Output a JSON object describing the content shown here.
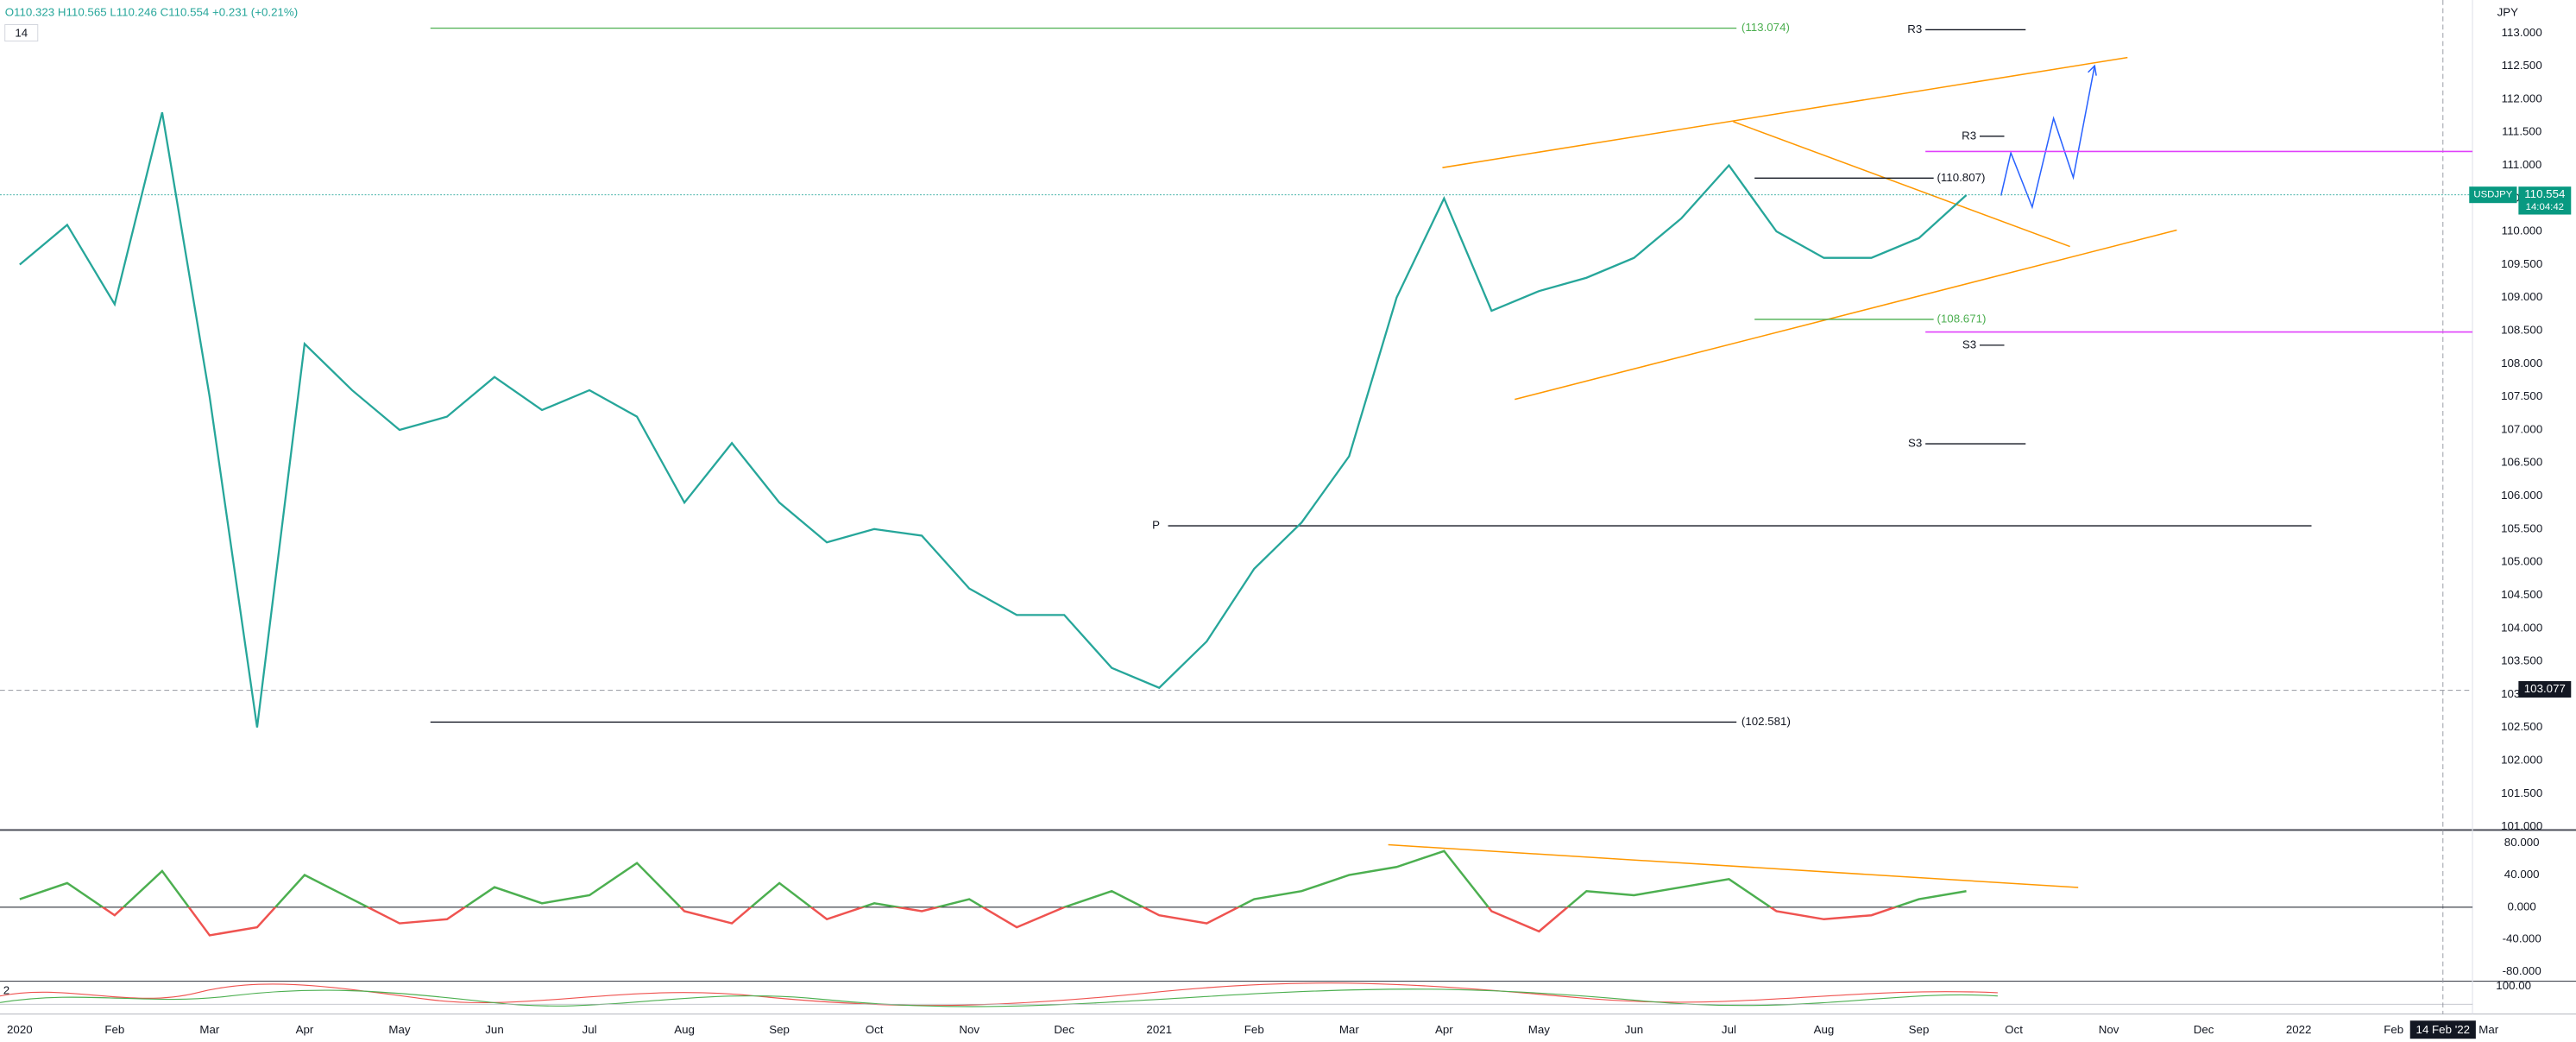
{
  "header": {
    "ohlc": "O110.323 H110.565 L110.246 C110.554 +0.231 (+0.21%)",
    "interval": "14",
    "currency": "JPY"
  },
  "chart_data": [
    {
      "type": "line",
      "symbol": "USDJPY",
      "last_price": 110.554,
      "countdown": "14:04:42",
      "crosshair_price": 103.077,
      "crosshair_date": "14 Feb '22",
      "color": "#26a69a",
      "categories": [
        "2020",
        null,
        "Feb",
        null,
        "Mar",
        null,
        "Apr",
        null,
        "May",
        null,
        "Jun",
        null,
        "Jul",
        null,
        "Aug",
        null,
        "Sep",
        null,
        "Oct",
        null,
        "Nov",
        null,
        "Dec",
        null,
        "2021",
        null,
        "Feb",
        null,
        "Mar",
        null,
        "Apr",
        null,
        "May",
        null,
        "Jun",
        null,
        "Jul",
        null,
        "Aug",
        null,
        "Sep",
        null,
        "Oct",
        null,
        "Nov",
        null,
        "Dec",
        null,
        "2022",
        null,
        "Feb",
        null,
        "Mar"
      ],
      "values": [
        109.5,
        110.1,
        108.9,
        111.8,
        107.5,
        102.5,
        108.3,
        107.6,
        107.0,
        107.2,
        107.8,
        107.3,
        107.6,
        107.2,
        105.9,
        106.8,
        105.9,
        105.3,
        105.5,
        105.4,
        104.6,
        104.2,
        104.2,
        103.4,
        103.1,
        103.8,
        104.9,
        105.6,
        106.6,
        109.0,
        110.5,
        108.8,
        109.1,
        109.3,
        109.6,
        110.2,
        111.0,
        110.0,
        109.6,
        109.6,
        109.9,
        110.55,
        null,
        null,
        null,
        null,
        null,
        null,
        null,
        null,
        null,
        null,
        null
      ],
      "ylim": [
        100.95,
        113.5
      ],
      "yticks": [
        {
          "value": 101,
          "label": "101.000"
        },
        {
          "value": 101.5,
          "label": "101.500"
        },
        {
          "value": 102,
          "label": "102.000"
        },
        {
          "value": 102.5,
          "label": "102.500"
        },
        {
          "value": 103,
          "label": "103.000"
        },
        {
          "value": 103.5,
          "label": "103.500"
        },
        {
          "value": 104,
          "label": "104.000"
        },
        {
          "value": 104.5,
          "label": "104.500"
        },
        {
          "value": 105,
          "label": "105.000"
        },
        {
          "value": 105.5,
          "label": "105.500"
        },
        {
          "value": 106,
          "label": "106.000"
        },
        {
          "value": 106.5,
          "label": "106.500"
        },
        {
          "value": 107,
          "label": "107.000"
        },
        {
          "value": 107.5,
          "label": "107.500"
        },
        {
          "value": 108,
          "label": "108.000"
        },
        {
          "value": 108.5,
          "label": "108.500"
        },
        {
          "value": 109,
          "label": "109.000"
        },
        {
          "value": 109.5,
          "label": "109.500"
        },
        {
          "value": 110,
          "label": "110.000"
        },
        {
          "value": 110.5,
          "label": "110.500"
        },
        {
          "value": 111,
          "label": "111.000"
        },
        {
          "value": 111.5,
          "label": "111.500"
        },
        {
          "value": 112,
          "label": "112.000"
        },
        {
          "value": 112.5,
          "label": "112.500"
        },
        {
          "value": 113,
          "label": "113.000"
        }
      ],
      "grid": false,
      "annotations": [
        {
          "value": 113.074,
          "label": "(113.074)"
        },
        {
          "value": 113.05,
          "label": "R3"
        },
        {
          "value": 111.44,
          "label": "R3"
        },
        {
          "value": 110.807,
          "label": "(110.807)"
        },
        {
          "value": 108.671,
          "label": "(108.671)"
        },
        {
          "value": 108.28,
          "label": "S3"
        },
        {
          "value": 106.79,
          "label": "S3"
        },
        {
          "value": 105.55,
          "label": "P"
        },
        {
          "value": 102.581,
          "label": "(102.581)"
        }
      ],
      "levels": [
        111.21,
        108.48
      ],
      "level_color": "#e040fb"
    },
    {
      "type": "oscillator",
      "color": "#4caf50",
      "color_negative": "#ef5350",
      "values": [
        10,
        30,
        -10,
        45,
        -35,
        -25,
        40,
        10,
        -20,
        -15,
        25,
        5,
        15,
        55,
        -5,
        -20,
        30,
        -15,
        5,
        -5,
        10,
        -25,
        0,
        20,
        -10,
        -20,
        10,
        20,
        40,
        50,
        70,
        -5,
        -30,
        20,
        15,
        25,
        35,
        -5,
        -15,
        -10,
        10,
        20,
        null,
        null,
        null,
        null,
        null,
        null,
        null,
        null,
        null,
        null,
        null
      ],
      "ylim": [
        -92,
        92
      ],
      "yticks": [
        {
          "value": 80,
          "label": "80.000"
        },
        {
          "value": 40,
          "label": "40.000"
        },
        {
          "value": 0,
          "label": "0.000"
        },
        {
          "value": -40,
          "label": "-40.000"
        },
        {
          "value": -80,
          "label": "-80.000"
        }
      ],
      "third_pane": {
        "label": "2",
        "tick": "100.00"
      }
    }
  ]
}
